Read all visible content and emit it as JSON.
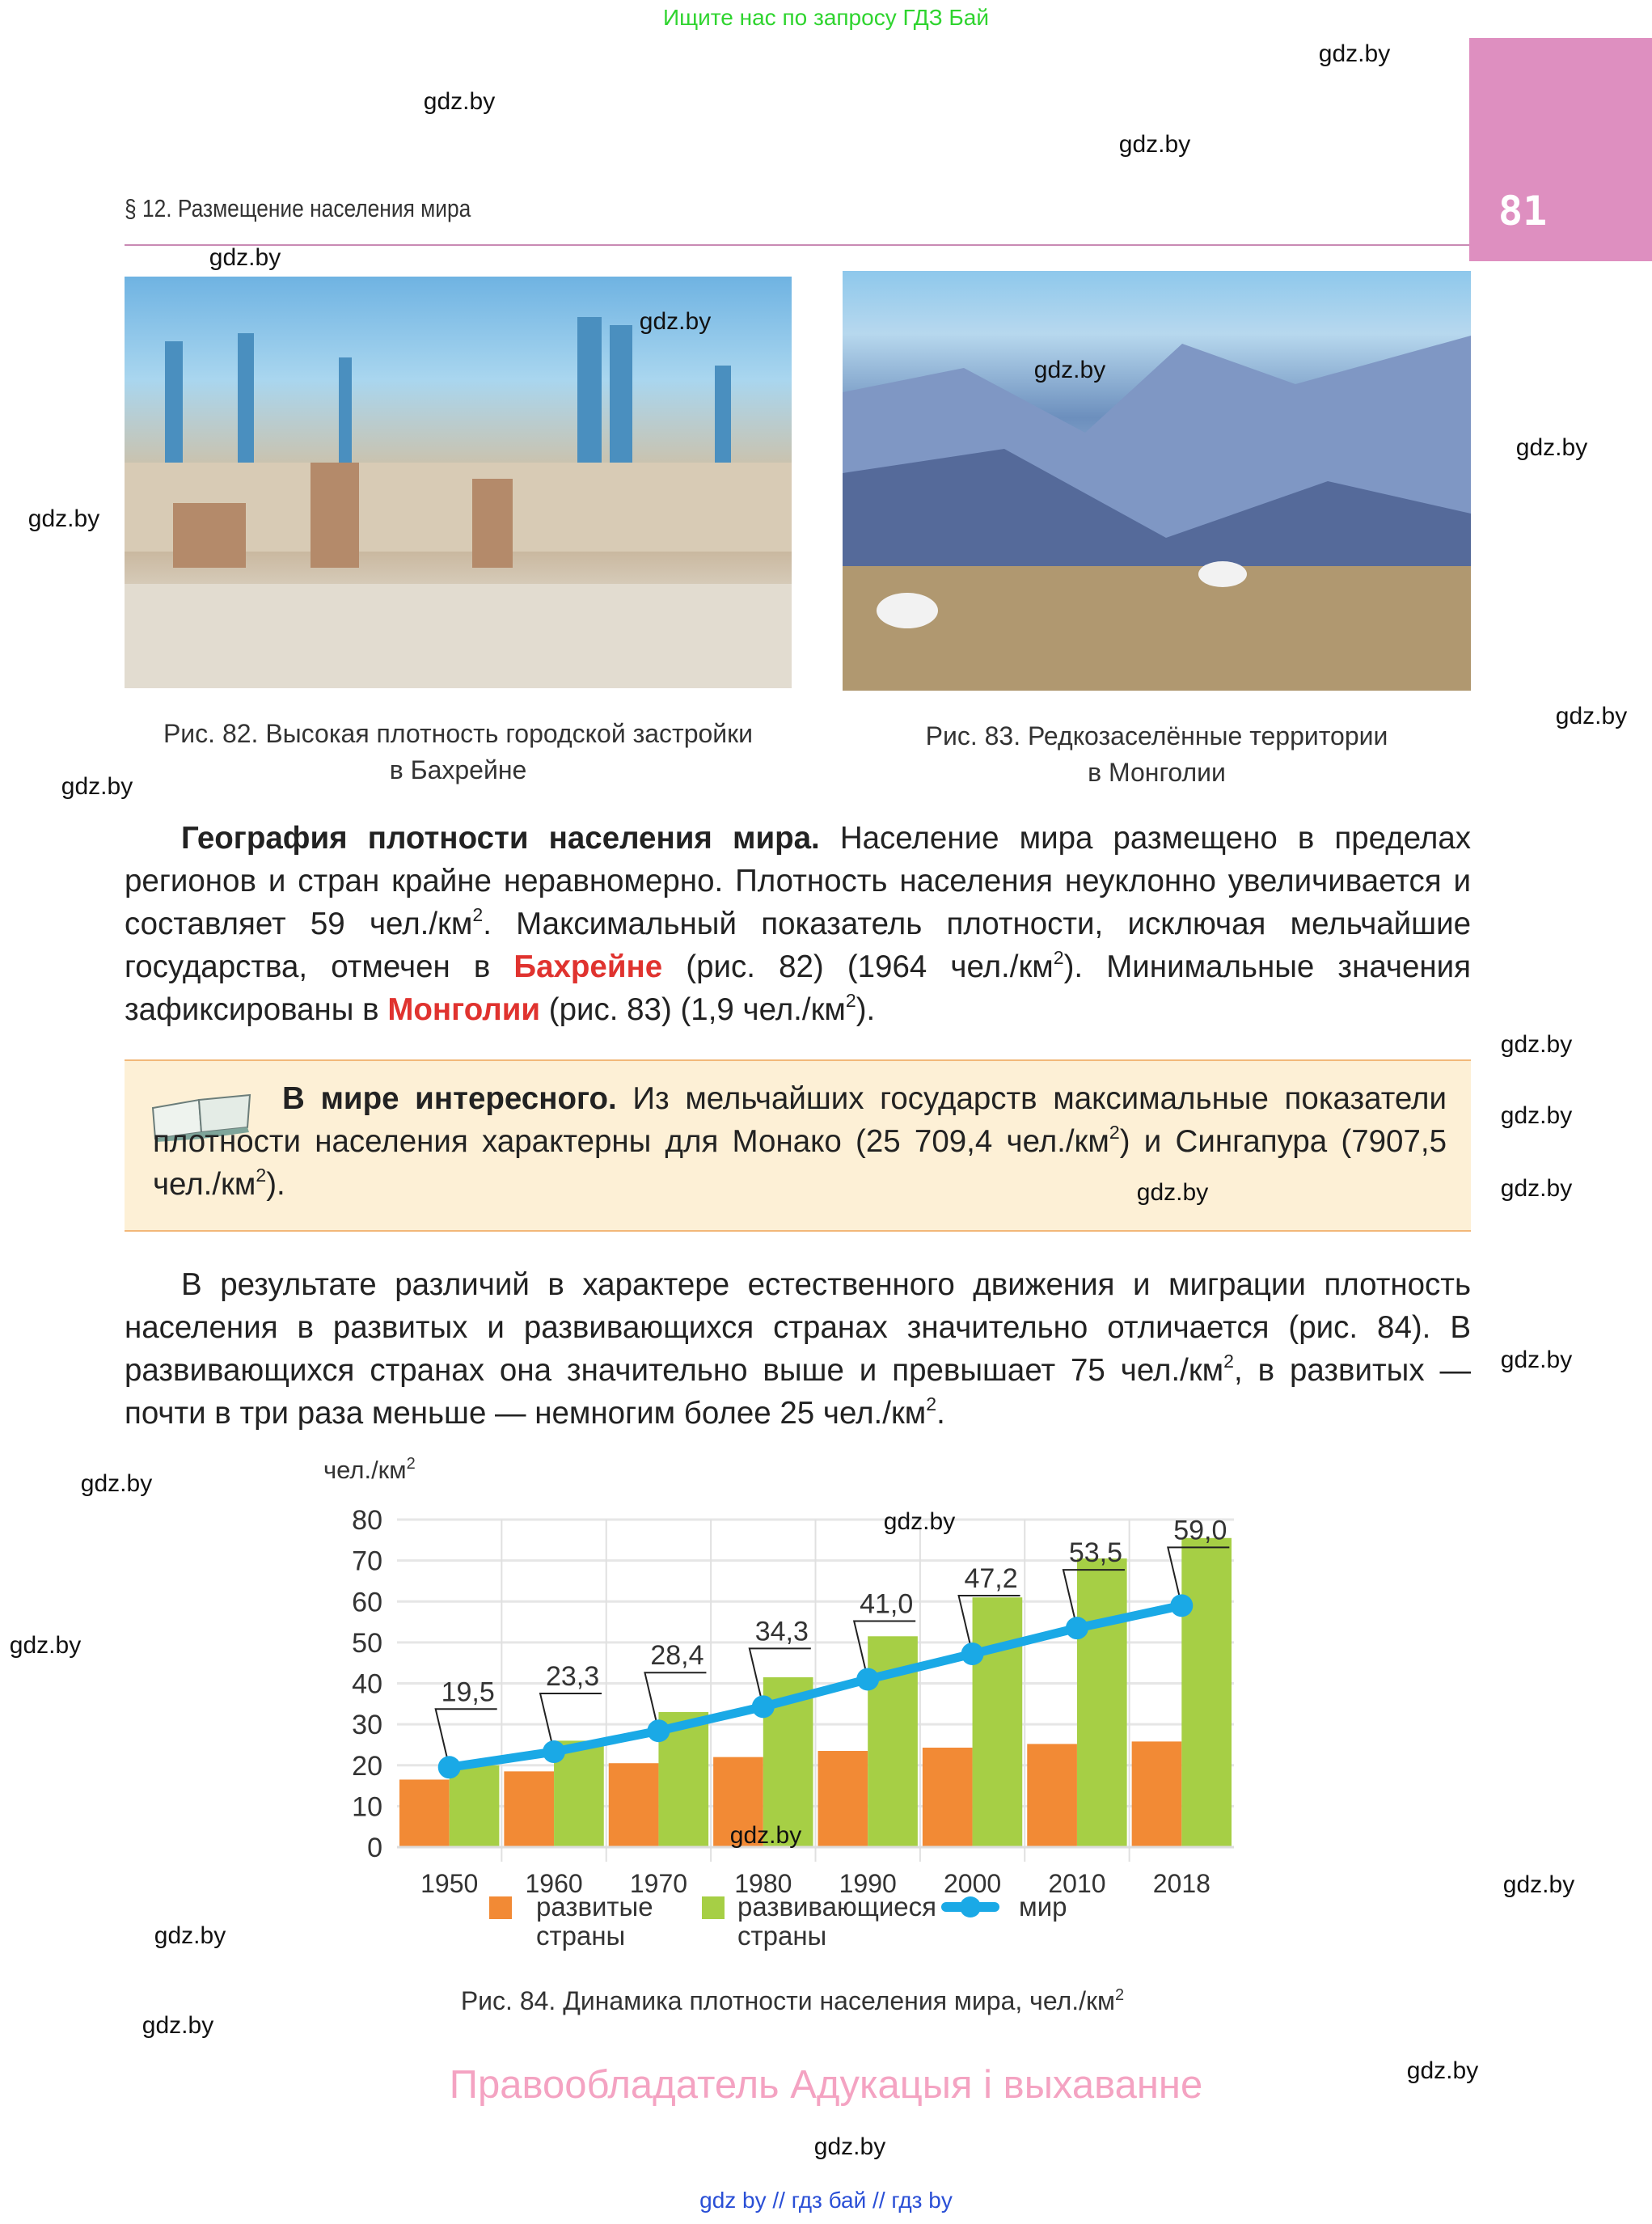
{
  "top_hint": "Ищите нас по запросу ГДЗ Бай",
  "page_number": "81",
  "section_header": "§ 12. Размещение населения мира",
  "figures": {
    "fig82_caption_line1": "Рис. 82. Высокая плотность городской застройки",
    "fig82_caption_line2": "в Бахрейне",
    "fig83_caption_line1": "Рис. 83. Редкозаселённые территории",
    "fig83_caption_line2": "в Монголии"
  },
  "paragraph1": {
    "heading": "География плотности населения мира.",
    "t1": " Население мира размещено в пределах регионов и стран крайне неравномерно. Плотность населения неуклонно увеличивается и составляет 59 чел./км",
    "t2": ". Максимальный показатель плотности, исключая мельчайшие государства, отмечен в ",
    "bahrain": "Бахрейне",
    "t3": " (рис. 82) (1964 чел./км",
    "t4": "). Минимальные значения зафиксированы в ",
    "mongolia": "Монголии",
    "t5": " (рис. 83) (1,9 чел./км",
    "t6": ").",
    "sup": "2"
  },
  "interesting_box": {
    "heading": "В мире интересного.",
    "t1": " Из мельчайших государств максимальные показатели плотности населения характерны для Монако (25 709,4 чел./км",
    "t2": ") и Сингапура (7907,5 чел./км",
    "t3": ").",
    "sup": "2",
    "icon": "open-book-icon"
  },
  "paragraph2": {
    "t1": "В результате различий в характере естественного движения и миграции плотность населения в развитых и развивающихся странах значительно отличается (рис. 84). В развивающихся странах она значительно выше и превышает 75 чел./км",
    "t2": ", в развитых — почти в три раза меньше — немногим более 25 чел./км",
    "t3": ".",
    "sup": "2"
  },
  "chart_data": {
    "type": "bar",
    "ylabel": "чел./км",
    "ylabel_sup": "2",
    "ylim": [
      0,
      80
    ],
    "yticks": [
      "0",
      "10",
      "20",
      "30",
      "40",
      "50",
      "60",
      "70",
      "80"
    ],
    "categories": [
      "1950",
      "1960",
      "1970",
      "1980",
      "1990",
      "2000",
      "2010",
      "2018"
    ],
    "grid": true,
    "series": [
      {
        "name": "развитые страны",
        "kind": "bar",
        "color": "#f28a35",
        "values": [
          16.5,
          18.5,
          20.5,
          22,
          23.5,
          24.3,
          25.2,
          25.8
        ]
      },
      {
        "name": "развивающиеся страны",
        "kind": "bar",
        "color": "#a6cf45",
        "values": [
          20,
          26,
          33,
          41.5,
          51.5,
          61,
          70.5,
          75.5
        ]
      },
      {
        "name": "мир",
        "kind": "line",
        "color": "#1aa9e6",
        "values": [
          19.5,
          23.3,
          28.4,
          34.3,
          41.0,
          47.2,
          53.5,
          59.0
        ],
        "labels": [
          "19,5",
          "23,3",
          "28,4",
          "34,3",
          "41,0",
          "47,2",
          "53,5",
          "59,0"
        ]
      }
    ],
    "legend": [
      "развитые",
      "страны",
      "развивающиеся",
      "страны",
      "мир"
    ],
    "legend_placement": "bottom",
    "caption": "Рис. 84.  Динамика плотности населения мира, чел./км",
    "caption_sup": "2"
  },
  "copyright": "Правообладатель Адукацыя і выхаванне",
  "footer": "gdz by  //  гдз бай  //  гдз by",
  "watermark": "gdz.by"
}
